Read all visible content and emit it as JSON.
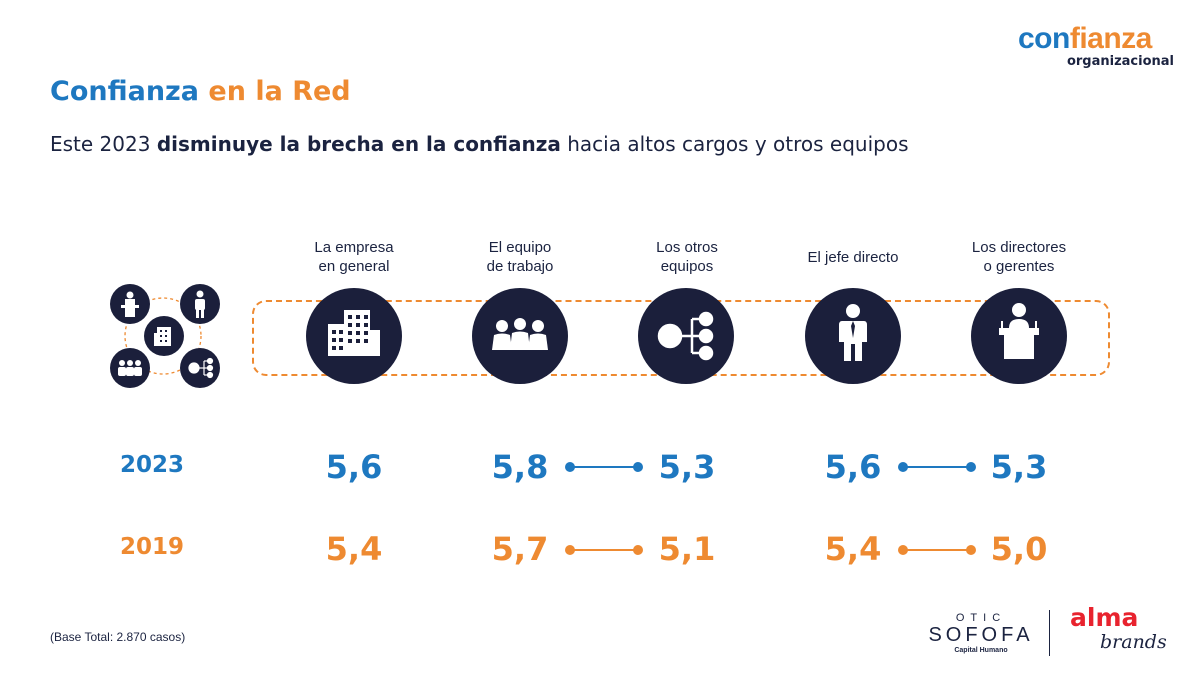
{
  "logo": {
    "part1": "con",
    "part2": "fianza",
    "part3": "organizacional"
  },
  "title": {
    "part1": "Confianza",
    "part2": "en la Red"
  },
  "subtitle": {
    "pre": "Este 2023 ",
    "bold": "disminuye la brecha en la confianza",
    "post": " hacia altos cargos y otros equipos"
  },
  "columns": [
    {
      "label_line1": "La empresa",
      "label_line2": "en general",
      "icon": "building-icon"
    },
    {
      "label_line1": "El equipo",
      "label_line2": "de trabajo",
      "icon": "team-icon"
    },
    {
      "label_line1": "Los otros",
      "label_line2": "equipos",
      "icon": "network-icon"
    },
    {
      "label_line1": "El jefe directo",
      "label_line2": "",
      "icon": "boss-icon"
    },
    {
      "label_line1": "Los directores",
      "label_line2": "o gerentes",
      "icon": "podium-icon"
    }
  ],
  "years": {
    "current": "2023",
    "previous": "2019"
  },
  "values_2023": [
    "5,6",
    "5,8",
    "5,3",
    "5,6",
    "5,3"
  ],
  "values_2019": [
    "5,4",
    "5,7",
    "5,1",
    "5,4",
    "5,0"
  ],
  "footnote": "(Base Total: 2.870 casos)",
  "partner_logo": {
    "line1": "OTIC",
    "line2": "SOFOFA",
    "line3": "Capital Humano"
  },
  "brand_logo": {
    "line1": "alma",
    "line2": "brands"
  },
  "colors": {
    "blue": "#1e78c0",
    "orange": "#ee8a31",
    "navy": "#1b1f3b",
    "red": "#e8232e"
  }
}
